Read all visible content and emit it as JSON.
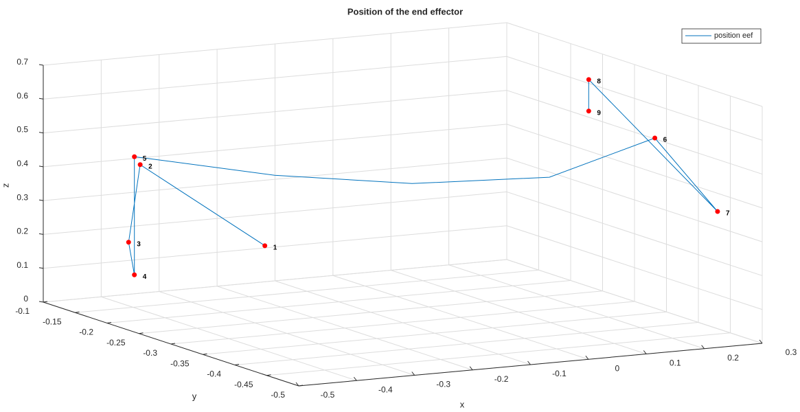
{
  "chart_data": {
    "type": "line3d",
    "title": "Position of the end effector",
    "xlabel": "x",
    "ylabel": "y",
    "zlabel": "z",
    "xlim": [
      -0.5,
      0.3
    ],
    "ylim": [
      -0.5,
      -0.1
    ],
    "zlim": [
      0,
      0.7
    ],
    "xticks": [
      -0.5,
      -0.4,
      -0.3,
      -0.2,
      -0.1,
      0,
      0.1,
      0.2,
      0.3
    ],
    "yticks": [
      -0.5,
      -0.45,
      -0.4,
      -0.35,
      -0.3,
      -0.25,
      -0.2,
      -0.15,
      -0.1
    ],
    "zticks": [
      0,
      0.1,
      0.2,
      0.3,
      0.4,
      0.5,
      0.6,
      0.7
    ],
    "grid": true,
    "legend": "top-right",
    "series": [
      {
        "name": "position eef",
        "color": "#0072bd",
        "x": [
          -0.338,
          -0.465,
          -0.485,
          -0.475,
          -0.475,
          -0.266,
          -0.062,
          0.142,
          0.291,
          0.267,
          0.221,
          0.221
        ],
        "y": [
          -0.3,
          -0.22,
          -0.22,
          -0.22,
          -0.22,
          -0.25,
          -0.28,
          -0.31,
          -0.34,
          -0.46,
          -0.3,
          -0.3
        ],
        "z": [
          0.265,
          0.475,
          0.249,
          0.151,
          0.5,
          0.431,
          0.393,
          0.398,
          0.509,
          0.37,
          0.668,
          0.575
        ]
      }
    ],
    "markers": {
      "color": "#ff0000",
      "labels": [
        "1",
        "2",
        "3",
        "4",
        "5",
        "6",
        "7",
        "8",
        "9"
      ],
      "x": [
        -0.338,
        -0.465,
        -0.485,
        -0.475,
        -0.475,
        0.291,
        0.267,
        0.221,
        0.221
      ],
      "y": [
        -0.3,
        -0.22,
        -0.22,
        -0.22,
        -0.22,
        -0.34,
        -0.46,
        -0.3,
        -0.3
      ],
      "z": [
        0.265,
        0.475,
        0.249,
        0.151,
        0.5,
        0.509,
        0.37,
        0.668,
        0.575
      ]
    }
  }
}
